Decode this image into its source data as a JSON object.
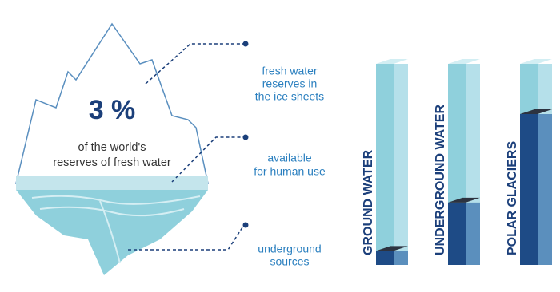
{
  "chart_data": {
    "type": "bar",
    "categories": [
      "GROUND WATER",
      "UNDERGROUND WATER",
      "POLAR GLACIERS"
    ],
    "values": [
      7,
      31,
      75
    ],
    "ylim": [
      0,
      100
    ],
    "color": "#1e4b86"
  },
  "iceberg": {
    "headline": "3 %",
    "caption": [
      "of the world's",
      "reserves of fresh water"
    ],
    "callouts": [
      [
        "fresh water",
        "reserves in",
        "the ice sheets"
      ],
      [
        "available",
        "for human use"
      ],
      [
        "underground",
        "sources"
      ]
    ]
  }
}
